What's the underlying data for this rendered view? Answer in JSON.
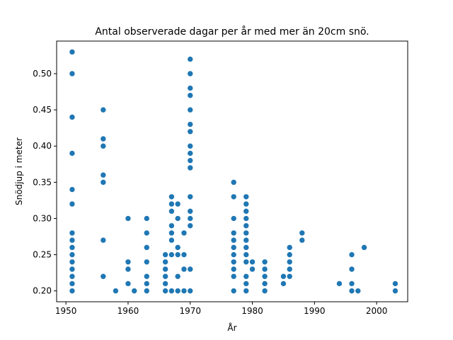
{
  "chart_data": {
    "type": "scatter",
    "title": "Antal observerade dagar per år med mer än 20cm snö.",
    "xlabel": "År",
    "ylabel": "Snödjup i meter",
    "xlim": [
      1948.5,
      2005.0
    ],
    "ylim": [
      0.185,
      0.545
    ],
    "xticks": [
      1950,
      1960,
      1970,
      1980,
      1990,
      2000
    ],
    "yticks": [
      0.2,
      0.25,
      0.3,
      0.35,
      0.4,
      0.45,
      0.5
    ],
    "ytick_labels": [
      "0.20",
      "0.25",
      "0.30",
      "0.35",
      "0.40",
      "0.45",
      "0.50"
    ],
    "grid": false,
    "legend": "none",
    "marker_color": "#1f77b4",
    "points": [
      [
        1951,
        0.53
      ],
      [
        1951,
        0.5
      ],
      [
        1951,
        0.44
      ],
      [
        1951,
        0.39
      ],
      [
        1951,
        0.34
      ],
      [
        1951,
        0.32
      ],
      [
        1951,
        0.28
      ],
      [
        1951,
        0.27
      ],
      [
        1951,
        0.26
      ],
      [
        1951,
        0.25
      ],
      [
        1951,
        0.24
      ],
      [
        1951,
        0.23
      ],
      [
        1951,
        0.22
      ],
      [
        1951,
        0.21
      ],
      [
        1951,
        0.2
      ],
      [
        1956,
        0.45
      ],
      [
        1956,
        0.41
      ],
      [
        1956,
        0.4
      ],
      [
        1956,
        0.36
      ],
      [
        1956,
        0.35
      ],
      [
        1956,
        0.27
      ],
      [
        1956,
        0.22
      ],
      [
        1958,
        0.2
      ],
      [
        1960,
        0.3
      ],
      [
        1960,
        0.24
      ],
      [
        1960,
        0.23
      ],
      [
        1960,
        0.21
      ],
      [
        1961,
        0.2
      ],
      [
        1963,
        0.3
      ],
      [
        1963,
        0.28
      ],
      [
        1963,
        0.26
      ],
      [
        1963,
        0.24
      ],
      [
        1963,
        0.22
      ],
      [
        1963,
        0.21
      ],
      [
        1963,
        0.2
      ],
      [
        1966,
        0.25
      ],
      [
        1966,
        0.24
      ],
      [
        1966,
        0.23
      ],
      [
        1966,
        0.22
      ],
      [
        1966,
        0.21
      ],
      [
        1966,
        0.2
      ],
      [
        1967,
        0.33
      ],
      [
        1967,
        0.32
      ],
      [
        1967,
        0.31
      ],
      [
        1967,
        0.29
      ],
      [
        1967,
        0.28
      ],
      [
        1967,
        0.27
      ],
      [
        1967,
        0.25
      ],
      [
        1967,
        0.2
      ],
      [
        1968,
        0.32
      ],
      [
        1968,
        0.3
      ],
      [
        1968,
        0.26
      ],
      [
        1968,
        0.25
      ],
      [
        1968,
        0.22
      ],
      [
        1968,
        0.2
      ],
      [
        1969,
        0.28
      ],
      [
        1969,
        0.25
      ],
      [
        1969,
        0.23
      ],
      [
        1969,
        0.2
      ],
      [
        1970,
        0.52
      ],
      [
        1970,
        0.5
      ],
      [
        1970,
        0.48
      ],
      [
        1970,
        0.47
      ],
      [
        1970,
        0.45
      ],
      [
        1970,
        0.43
      ],
      [
        1970,
        0.42
      ],
      [
        1970,
        0.4
      ],
      [
        1970,
        0.39
      ],
      [
        1970,
        0.38
      ],
      [
        1970,
        0.37
      ],
      [
        1970,
        0.33
      ],
      [
        1970,
        0.31
      ],
      [
        1970,
        0.3
      ],
      [
        1970,
        0.29
      ],
      [
        1970,
        0.23
      ],
      [
        1970,
        0.2
      ],
      [
        1977,
        0.35
      ],
      [
        1977,
        0.33
      ],
      [
        1977,
        0.3
      ],
      [
        1977,
        0.28
      ],
      [
        1977,
        0.27
      ],
      [
        1977,
        0.26
      ],
      [
        1977,
        0.25
      ],
      [
        1977,
        0.24
      ],
      [
        1977,
        0.23
      ],
      [
        1977,
        0.22
      ],
      [
        1977,
        0.2
      ],
      [
        1979,
        0.33
      ],
      [
        1979,
        0.32
      ],
      [
        1979,
        0.31
      ],
      [
        1979,
        0.3
      ],
      [
        1979,
        0.29
      ],
      [
        1979,
        0.28
      ],
      [
        1979,
        0.27
      ],
      [
        1979,
        0.26
      ],
      [
        1979,
        0.25
      ],
      [
        1979,
        0.24
      ],
      [
        1979,
        0.22
      ],
      [
        1979,
        0.21
      ],
      [
        1979,
        0.2
      ],
      [
        1980,
        0.24
      ],
      [
        1980,
        0.23
      ],
      [
        1982,
        0.24
      ],
      [
        1982,
        0.23
      ],
      [
        1982,
        0.22
      ],
      [
        1982,
        0.21
      ],
      [
        1982,
        0.2
      ],
      [
        1985,
        0.22
      ],
      [
        1985,
        0.21
      ],
      [
        1986,
        0.26
      ],
      [
        1986,
        0.25
      ],
      [
        1986,
        0.24
      ],
      [
        1986,
        0.23
      ],
      [
        1986,
        0.22
      ],
      [
        1988,
        0.28
      ],
      [
        1988,
        0.27
      ],
      [
        1994,
        0.21
      ],
      [
        1996,
        0.25
      ],
      [
        1996,
        0.23
      ],
      [
        1996,
        0.21
      ],
      [
        1996,
        0.2
      ],
      [
        1997,
        0.2
      ],
      [
        1998,
        0.26
      ],
      [
        2003,
        0.21
      ],
      [
        2003,
        0.2
      ]
    ]
  }
}
